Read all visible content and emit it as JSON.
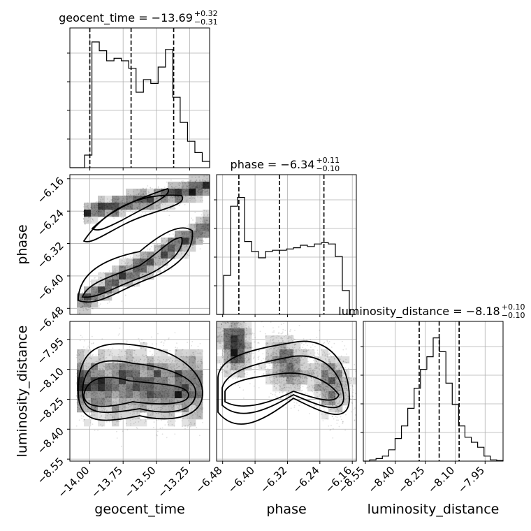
{
  "chart_data": {
    "type": "corner",
    "parameters": [
      "geocent_time",
      "phase",
      "luminosity_distance"
    ],
    "titles": {
      "geocent_time": {
        "name": "geocent_time",
        "value": "−13.69",
        "plus": "+0.32",
        "minus": "−0.31"
      },
      "phase": {
        "name": "phase",
        "value": "−6.34",
        "plus": "+0.11",
        "minus": "−0.10"
      },
      "luminosity_distance": {
        "name": "luminosity_distance",
        "value": "−8.18",
        "plus": "+0.10",
        "minus": "−0.10"
      }
    },
    "ranges": {
      "geocent_time": [
        -14.15,
        -13.1
      ],
      "phase": [
        -6.495,
        -6.15
      ],
      "luminosity_distance": [
        -8.56,
        -7.86
      ]
    },
    "ticks": {
      "geocent_time": [
        -14.0,
        -13.75,
        -13.5,
        -13.25
      ],
      "phase": [
        -6.48,
        -6.4,
        -6.32,
        -6.24,
        -6.16
      ],
      "luminosity_distance": [
        -8.55,
        -8.4,
        -8.25,
        -8.1,
        -7.95
      ]
    },
    "tick_labels": {
      "geocent_time": [
        "−14.00",
        "−13.75",
        "−13.50",
        "−13.25"
      ],
      "phase": [
        "−6.48",
        "−6.40",
        "−6.32",
        "−6.24",
        "−6.16"
      ],
      "luminosity_distance": [
        "−8.55",
        "−8.40",
        "−8.25",
        "−8.10",
        "−7.95"
      ]
    },
    "quantiles": {
      "geocent_time": [
        -14.0,
        -13.69,
        -13.37
      ],
      "phase": [
        -6.44,
        -6.34,
        -6.23
      ],
      "luminosity_distance": [
        -8.28,
        -8.18,
        -8.08
      ]
    },
    "histograms": {
      "geocent_time": [
        0,
        0,
        0.1,
        1.0,
        0.93,
        0.85,
        0.87,
        0.85,
        0.79,
        0.6,
        0.7,
        0.67,
        0.8,
        0.94,
        0.56,
        0.36,
        0.21,
        0.12,
        0.05
      ],
      "phase": [
        0,
        0.31,
        0.86,
        0.93,
        0.58,
        0.5,
        0.45,
        0.5,
        0.51,
        0.51,
        0.52,
        0.53,
        0.55,
        0.54,
        0.56,
        0.57,
        0.56,
        0.46,
        0.19,
        0
      ],
      "luminosity_distance": [
        0,
        0.01,
        0.02,
        0.04,
        0.09,
        0.18,
        0.28,
        0.42,
        0.58,
        0.73,
        0.83,
        0.98,
        0.87,
        0.62,
        0.45,
        0.28,
        0.19,
        0.15,
        0.11,
        0.04,
        0.01,
        0.005
      ]
    },
    "axis_labels": {
      "x": [
        "geocent_time",
        "phase",
        "luminosity_distance"
      ],
      "y": [
        "phase",
        "luminosity_distance"
      ]
    },
    "grid": true
  }
}
